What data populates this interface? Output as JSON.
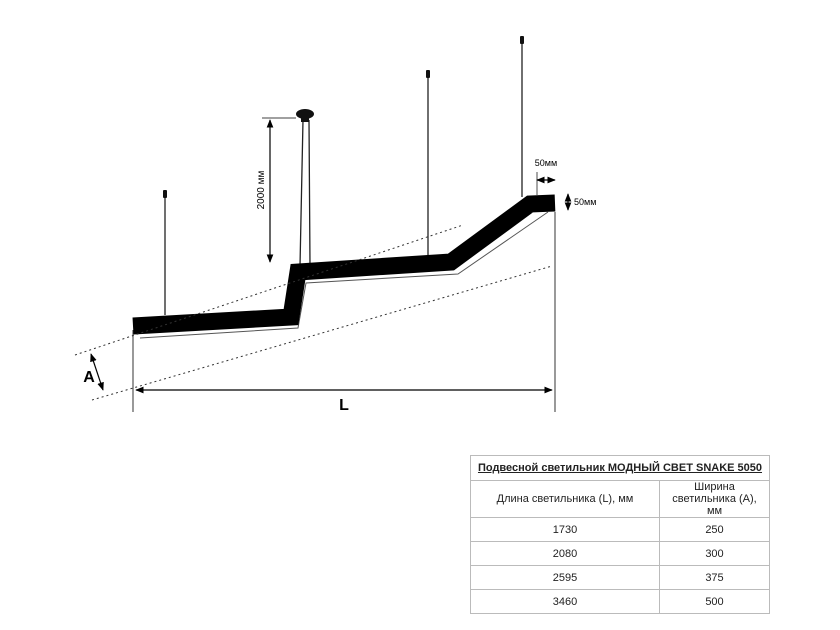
{
  "drawing": {
    "labels": {
      "height": "2000 мм",
      "top_width": "50мм",
      "side_height": "50мм",
      "width_a": "A",
      "length_l": "L"
    }
  },
  "table": {
    "title": "Подвесной светильник МОДНЫЙ СВЕТ SNAKE 5050",
    "headers": [
      "Длина светильника (L), мм",
      "Ширина светильника (A), мм"
    ],
    "rows": [
      [
        "1730",
        "250"
      ],
      [
        "2080",
        "300"
      ],
      [
        "2595",
        "375"
      ],
      [
        "3460",
        "500"
      ]
    ]
  }
}
